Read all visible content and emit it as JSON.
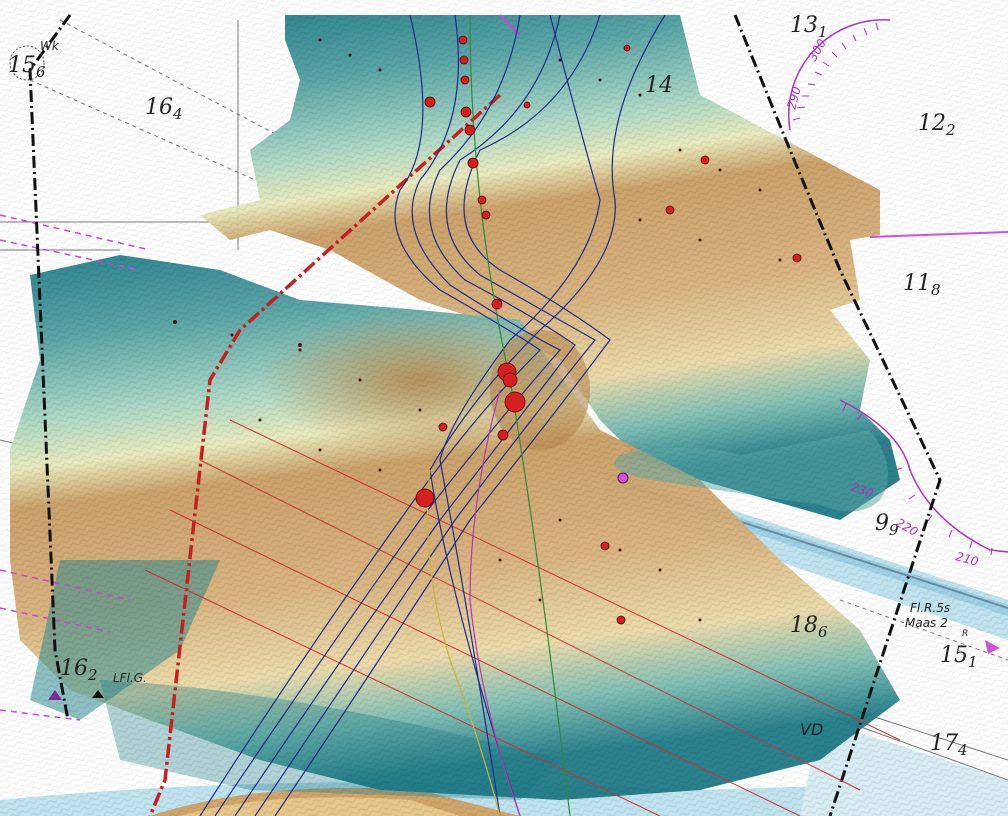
{
  "soundings": [
    {
      "main": "15",
      "sub": "6"
    },
    {
      "main": "16",
      "sub": "4"
    },
    {
      "main": "14",
      "sub": ""
    },
    {
      "main": "13",
      "sub": "1"
    },
    {
      "main": "12",
      "sub": "2"
    },
    {
      "main": "11",
      "sub": "8"
    },
    {
      "main": "9",
      "sub": "9"
    },
    {
      "main": "18",
      "sub": "6"
    },
    {
      "main": "15",
      "sub": "1"
    },
    {
      "main": "16",
      "sub": "2"
    },
    {
      "main": "17",
      "sub": "4"
    }
  ],
  "compass_labels": [
    "300",
    "290",
    "230",
    "220",
    "210"
  ],
  "light_labels": {
    "buoy_light": "Fl.R.5s",
    "buoy_name": "Maas 2",
    "buoy_tag": "R",
    "light_left": "LFl.G.",
    "wk": "Wk",
    "vd": "VD"
  },
  "colors": {
    "deep": "#1a7a86",
    "mid": "#7ec2b6",
    "shallow": "#e9e7b4",
    "shoal": "#c9a46c",
    "channel": "#a8d8ea",
    "cable": "#c21e1e",
    "anchor": "#d93060",
    "track_blue": "#1f2b8c",
    "track_green": "#2e8a3a",
    "track_magenta": "#b23ab0",
    "track_yellow": "#c8b33a"
  }
}
